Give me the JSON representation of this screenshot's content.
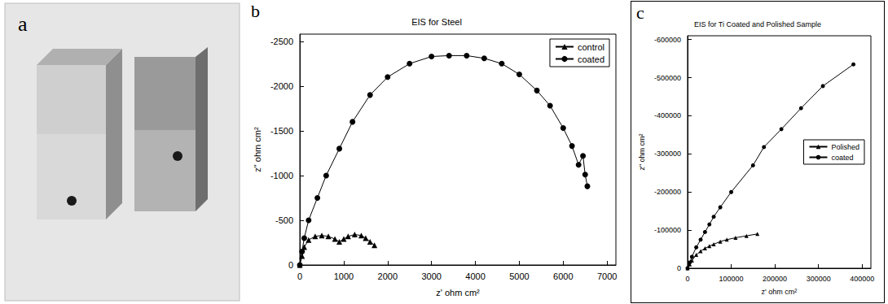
{
  "photo": {
    "panel_label": "a"
  },
  "chart_data": [
    {
      "type": "line",
      "panel_label": "b",
      "title": "EIS for Steel",
      "x_label": "z' ohm cm²",
      "y_label": "z\" ohm cm²",
      "xlim": [
        0,
        7200
      ],
      "xticks": [
        0,
        1000,
        2000,
        3000,
        4000,
        5000,
        6000,
        7000
      ],
      "ylim": [
        0,
        -2580
      ],
      "yticks": [
        0,
        -500,
        -1000,
        -1500,
        -2000,
        -2500
      ],
      "grid": false,
      "legend": "upper right",
      "series": [
        {
          "name": "control",
          "color": "#000000",
          "marker": "triangle",
          "line_style": "solid",
          "x": [
            0,
            50,
            100,
            200,
            350,
            500,
            650,
            800,
            900,
            1000,
            1100,
            1250,
            1400,
            1500,
            1600,
            1700
          ],
          "values": [
            0,
            -100,
            -200,
            -280,
            -320,
            -330,
            -320,
            -290,
            -260,
            -290,
            -320,
            -340,
            -330,
            -300,
            -260,
            -220
          ]
        },
        {
          "name": "coated",
          "color": "#000000",
          "marker": "circle",
          "line_style": "solid",
          "x": [
            0,
            50,
            100,
            200,
            400,
            600,
            900,
            1200,
            1600,
            2000,
            2500,
            3000,
            3400,
            3800,
            4200,
            4600,
            5000,
            5400,
            5700,
            6000,
            6200,
            6350,
            6450,
            6500,
            6550
          ],
          "values": [
            0,
            -150,
            -300,
            -500,
            -750,
            -1000,
            -1300,
            -1600,
            -1900,
            -2100,
            -2250,
            -2330,
            -2340,
            -2340,
            -2310,
            -2250,
            -2130,
            -1950,
            -1780,
            -1530,
            -1330,
            -1120,
            -1220,
            -1010,
            -880
          ]
        }
      ]
    },
    {
      "type": "line",
      "panel_label": "c",
      "title": "EIS for Ti Coated and Polished Sample",
      "x_label": "z' ohm cm²",
      "y_label": "z\" ohm cm²",
      "xlim": [
        0,
        420000
      ],
      "xticks": [
        0,
        100000,
        200000,
        300000,
        400000
      ],
      "ylim": [
        0,
        -610000
      ],
      "yticks": [
        0,
        -100000,
        -200000,
        -300000,
        -400000,
        -500000,
        -600000
      ],
      "grid": false,
      "legend": "right",
      "series": [
        {
          "name": "Polished",
          "color": "#000000",
          "marker": "triangle",
          "line_style": "solid",
          "x": [
            0,
            5000,
            10000,
            20000,
            30000,
            40000,
            50000,
            60000,
            75000,
            90000,
            110000,
            135000,
            160000
          ],
          "values": [
            0,
            -10000,
            -20000,
            -35000,
            -45000,
            -52000,
            -58000,
            -63000,
            -70000,
            -75000,
            -80000,
            -85000,
            -90000
          ]
        },
        {
          "name": "coated",
          "color": "#000000",
          "marker": "circle",
          "line_style": "solid",
          "x": [
            0,
            5000,
            10000,
            20000,
            30000,
            40000,
            50000,
            60000,
            75000,
            100000,
            150000,
            175000,
            215000,
            260000,
            310000,
            380000
          ],
          "values": [
            0,
            -15000,
            -30000,
            -55000,
            -75000,
            -95000,
            -115000,
            -135000,
            -160000,
            -200000,
            -270000,
            -318000,
            -365000,
            -420000,
            -478000,
            -535000
          ]
        }
      ]
    }
  ]
}
